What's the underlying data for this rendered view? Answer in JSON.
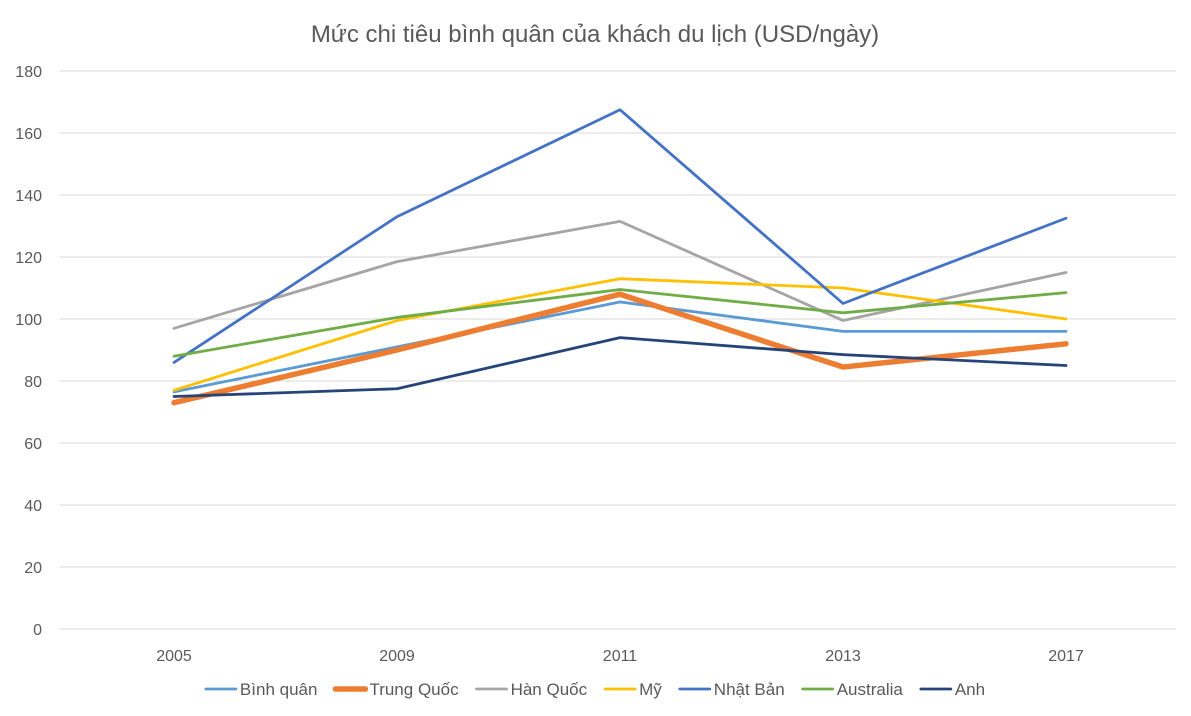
{
  "chart_data": {
    "type": "line",
    "title": "Mức chi tiêu bình quân của khách du lịch (USD/ngày)",
    "xlabel": "",
    "ylabel": "",
    "categories": [
      "2005",
      "2009",
      "2011",
      "2013",
      "2017"
    ],
    "ylim": [
      0,
      180
    ],
    "yticks": [
      0,
      20,
      40,
      60,
      80,
      100,
      120,
      140,
      160,
      180
    ],
    "grid": true,
    "legend_position": "bottom",
    "series": [
      {
        "name": "Bình quân",
        "color": "#5b9bd5",
        "thick": false,
        "values": [
          76.5,
          91,
          105.5,
          96,
          96
        ]
      },
      {
        "name": "Trung Quốc",
        "color": "#ed7d31",
        "thick": true,
        "values": [
          73,
          90,
          108,
          84.5,
          92
        ]
      },
      {
        "name": "Hàn Quốc",
        "color": "#a5a5a5",
        "thick": false,
        "values": [
          97,
          118.5,
          131.5,
          99.5,
          115
        ]
      },
      {
        "name": "Mỹ",
        "color": "#ffc000",
        "thick": false,
        "values": [
          77,
          99.5,
          113,
          110,
          100
        ]
      },
      {
        "name": "Nhật Bản",
        "color": "#4472c4",
        "thick": false,
        "values": [
          86,
          133,
          167.5,
          105,
          132.5
        ]
      },
      {
        "name": "Australia",
        "color": "#70ad47",
        "thick": false,
        "values": [
          88,
          100.5,
          109.5,
          102,
          108.5
        ]
      },
      {
        "name": "Anh",
        "color": "#264478",
        "thick": false,
        "values": [
          75,
          77.5,
          94,
          88.5,
          85
        ]
      }
    ]
  }
}
